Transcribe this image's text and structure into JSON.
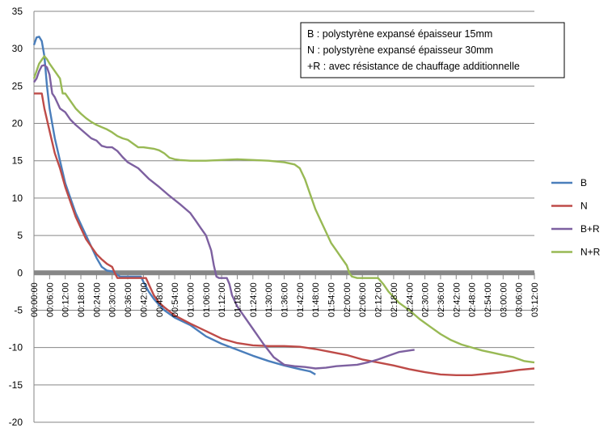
{
  "chart_data": {
    "type": "line",
    "xlim": [
      0,
      192
    ],
    "ylim": [
      -20,
      35
    ],
    "y_ticks": [
      35,
      30,
      25,
      20,
      15,
      10,
      5,
      0,
      -5,
      -10,
      -15,
      -20
    ],
    "x_ticks": [
      "00:00:00",
      "00:06:00",
      "00:12:00",
      "00:18:00",
      "00:24:00",
      "00:30:00",
      "00:36:00",
      "00:42:00",
      "00:48:00",
      "00:54:00",
      "01:00:00",
      "01:06:00",
      "01:12:00",
      "01:18:00",
      "01:24:00",
      "01:30:00",
      "01:36:00",
      "01:42:00",
      "01:48:00",
      "01:54:00",
      "02:00:00",
      "02:06:00",
      "02:12:00",
      "02:18:00",
      "02:24:00",
      "02:30:00",
      "02:36:00",
      "02:42:00",
      "02:48:00",
      "02:54:00",
      "03:00:00",
      "03:06:00",
      "03:12:00"
    ],
    "grid": true,
    "legend_position": "right",
    "annotation": [
      "B : polystyrène expansé épaisseur 15mm",
      "N : polystyrène expansé épaisseur 30mm",
      "+R : avec résistance de chauffage additionnelle"
    ],
    "series": [
      {
        "name": "B",
        "color": "#4a7ebb",
        "points": [
          [
            0,
            30.5
          ],
          [
            1,
            31.5
          ],
          [
            2,
            31.6
          ],
          [
            3,
            31
          ],
          [
            4,
            29
          ],
          [
            5,
            25
          ],
          [
            6,
            22
          ],
          [
            8,
            18
          ],
          [
            10,
            15
          ],
          [
            12,
            12
          ],
          [
            14,
            10
          ],
          [
            16,
            8
          ],
          [
            18,
            6.5
          ],
          [
            20,
            5
          ],
          [
            22,
            3.5
          ],
          [
            24,
            2
          ],
          [
            26,
            0.8
          ],
          [
            28,
            0.3
          ],
          [
            30,
            0.2
          ],
          [
            31,
            0
          ],
          [
            33,
            -0.5
          ],
          [
            36,
            -0.5
          ],
          [
            39,
            -0.5
          ],
          [
            41,
            -0.5
          ],
          [
            42,
            -1.2
          ],
          [
            44,
            -2.5
          ],
          [
            46,
            -3.5
          ],
          [
            48,
            -4.3
          ],
          [
            50,
            -5
          ],
          [
            54,
            -6
          ],
          [
            60,
            -7
          ],
          [
            66,
            -8.5
          ],
          [
            72,
            -9.5
          ],
          [
            78,
            -10.3
          ],
          [
            84,
            -11.1
          ],
          [
            90,
            -11.8
          ],
          [
            96,
            -12.4
          ],
          [
            102,
            -12.9
          ],
          [
            106,
            -13.2
          ],
          [
            108,
            -13.6
          ]
        ]
      },
      {
        "name": "N",
        "color": "#be4b48",
        "points": [
          [
            0,
            24
          ],
          [
            2,
            24
          ],
          [
            3,
            24
          ],
          [
            4,
            22
          ],
          [
            6,
            19
          ],
          [
            8,
            16
          ],
          [
            10,
            14
          ],
          [
            12,
            11.5
          ],
          [
            14,
            9.5
          ],
          [
            16,
            7.5
          ],
          [
            18,
            6
          ],
          [
            20,
            4.5
          ],
          [
            22,
            3.5
          ],
          [
            24,
            2.5
          ],
          [
            26,
            1.8
          ],
          [
            28,
            1.2
          ],
          [
            30,
            0.8
          ],
          [
            31,
            0
          ],
          [
            32,
            -0.7
          ],
          [
            36,
            -0.7
          ],
          [
            40,
            -0.7
          ],
          [
            43,
            -0.7
          ],
          [
            44,
            -1.5
          ],
          [
            46,
            -3
          ],
          [
            48,
            -4
          ],
          [
            50,
            -4.6
          ],
          [
            54,
            -5.7
          ],
          [
            60,
            -6.8
          ],
          [
            66,
            -7.8
          ],
          [
            72,
            -8.8
          ],
          [
            78,
            -9.4
          ],
          [
            84,
            -9.7
          ],
          [
            90,
            -9.8
          ],
          [
            96,
            -9.8
          ],
          [
            102,
            -9.9
          ],
          [
            108,
            -10.2
          ],
          [
            114,
            -10.6
          ],
          [
            120,
            -11
          ],
          [
            126,
            -11.6
          ],
          [
            132,
            -12
          ],
          [
            138,
            -12.4
          ],
          [
            144,
            -12.9
          ],
          [
            150,
            -13.3
          ],
          [
            156,
            -13.6
          ],
          [
            162,
            -13.7
          ],
          [
            168,
            -13.7
          ],
          [
            174,
            -13.5
          ],
          [
            180,
            -13.3
          ],
          [
            186,
            -13
          ],
          [
            192,
            -12.8
          ]
        ]
      },
      {
        "name": "B+R",
        "color": "#7d60a0",
        "points": [
          [
            0,
            25.5
          ],
          [
            1,
            26
          ],
          [
            2,
            27
          ],
          [
            3,
            27.7
          ],
          [
            4,
            27.8
          ],
          [
            5,
            27.5
          ],
          [
            6,
            26.5
          ],
          [
            7,
            24
          ],
          [
            8,
            23.5
          ],
          [
            10,
            22
          ],
          [
            12,
            21.5
          ],
          [
            14,
            20.5
          ],
          [
            16,
            19.8
          ],
          [
            18,
            19.2
          ],
          [
            20,
            18.6
          ],
          [
            22,
            18
          ],
          [
            24,
            17.7
          ],
          [
            26,
            17
          ],
          [
            28,
            16.8
          ],
          [
            30,
            16.8
          ],
          [
            32,
            16.3
          ],
          [
            34,
            15.5
          ],
          [
            36,
            14.8
          ],
          [
            40,
            14
          ],
          [
            44,
            12.6
          ],
          [
            48,
            11.5
          ],
          [
            52,
            10.3
          ],
          [
            56,
            9.2
          ],
          [
            60,
            8
          ],
          [
            62,
            7
          ],
          [
            64,
            6
          ],
          [
            66,
            5
          ],
          [
            68,
            3
          ],
          [
            69,
            1
          ],
          [
            70,
            -0.5
          ],
          [
            71,
            -0.7
          ],
          [
            74,
            -0.7
          ],
          [
            75,
            -1.5
          ],
          [
            76,
            -3
          ],
          [
            78,
            -4.5
          ],
          [
            80,
            -5.5
          ],
          [
            84,
            -7.5
          ],
          [
            88,
            -9.5
          ],
          [
            92,
            -11.3
          ],
          [
            96,
            -12.3
          ],
          [
            100,
            -12.5
          ],
          [
            104,
            -12.6
          ],
          [
            108,
            -12.8
          ],
          [
            112,
            -12.7
          ],
          [
            116,
            -12.5
          ],
          [
            120,
            -12.4
          ],
          [
            124,
            -12.3
          ],
          [
            128,
            -12
          ],
          [
            132,
            -11.6
          ],
          [
            136,
            -11.1
          ],
          [
            140,
            -10.6
          ],
          [
            144,
            -10.4
          ],
          [
            146,
            -10.3
          ]
        ]
      },
      {
        "name": "N+R",
        "color": "#98b954",
        "points": [
          [
            0,
            26
          ],
          [
            1,
            27
          ],
          [
            2,
            28
          ],
          [
            3,
            28.5
          ],
          [
            4,
            29
          ],
          [
            5,
            28.6
          ],
          [
            6,
            28
          ],
          [
            8,
            27
          ],
          [
            10,
            26
          ],
          [
            11,
            24
          ],
          [
            12,
            24
          ],
          [
            14,
            23
          ],
          [
            16,
            22
          ],
          [
            18,
            21.3
          ],
          [
            20,
            20.7
          ],
          [
            22,
            20.2
          ],
          [
            24,
            19.8
          ],
          [
            26,
            19.5
          ],
          [
            28,
            19.2
          ],
          [
            30,
            18.8
          ],
          [
            32,
            18.3
          ],
          [
            34,
            18
          ],
          [
            36,
            17.8
          ],
          [
            38,
            17.3
          ],
          [
            40,
            16.8
          ],
          [
            42,
            16.8
          ],
          [
            46,
            16.6
          ],
          [
            48,
            16.4
          ],
          [
            50,
            16
          ],
          [
            52,
            15.4
          ],
          [
            54,
            15.2
          ],
          [
            56,
            15.1
          ],
          [
            60,
            15
          ],
          [
            66,
            15
          ],
          [
            72,
            15.1
          ],
          [
            78,
            15.2
          ],
          [
            84,
            15.1
          ],
          [
            90,
            15
          ],
          [
            96,
            14.8
          ],
          [
            100,
            14.5
          ],
          [
            102,
            14
          ],
          [
            104,
            12.5
          ],
          [
            106,
            10.5
          ],
          [
            108,
            8.5
          ],
          [
            110,
            7
          ],
          [
            112,
            5.5
          ],
          [
            114,
            4
          ],
          [
            116,
            3
          ],
          [
            118,
            2
          ],
          [
            120,
            1
          ],
          [
            121,
            0
          ],
          [
            122,
            -0.5
          ],
          [
            124,
            -0.7
          ],
          [
            128,
            -0.7
          ],
          [
            132,
            -0.7
          ],
          [
            134,
            -1.5
          ],
          [
            136,
            -2.5
          ],
          [
            140,
            -4
          ],
          [
            144,
            -5
          ],
          [
            148,
            -6.2
          ],
          [
            152,
            -7.2
          ],
          [
            156,
            -8.2
          ],
          [
            160,
            -9
          ],
          [
            164,
            -9.6
          ],
          [
            168,
            -10
          ],
          [
            172,
            -10.4
          ],
          [
            176,
            -10.7
          ],
          [
            180,
            -11
          ],
          [
            184,
            -11.3
          ],
          [
            188,
            -11.8
          ],
          [
            192,
            -12
          ]
        ]
      }
    ]
  }
}
